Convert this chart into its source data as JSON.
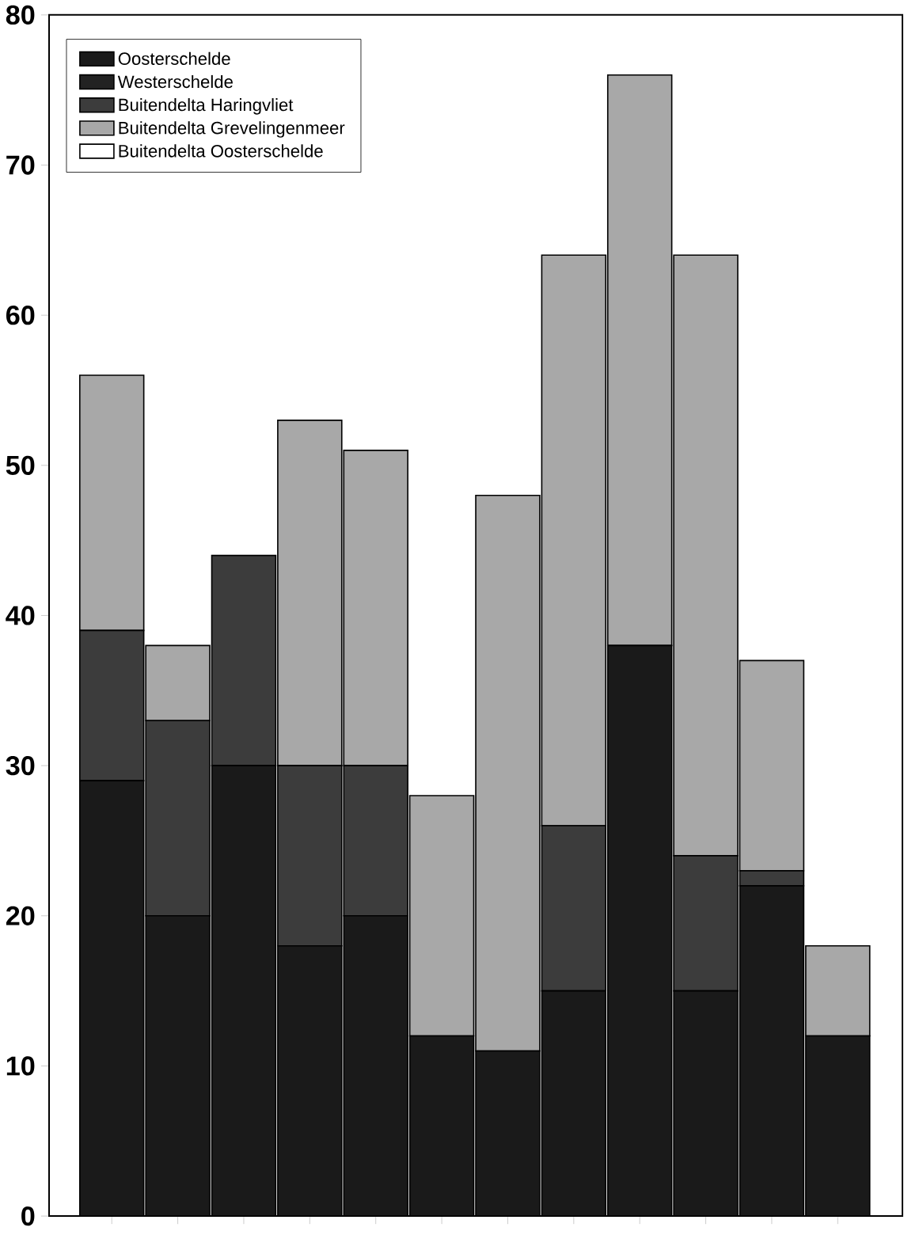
{
  "chart_data": {
    "type": "bar",
    "stacked": true,
    "categories": [
      null,
      null,
      null,
      null,
      null,
      null,
      null,
      null,
      null,
      null,
      null,
      null
    ],
    "series": [
      {
        "name": "Oosterschelde",
        "color": "#1a1a1a",
        "values": [
          29,
          20,
          30,
          18,
          20,
          12,
          11,
          15,
          38,
          15,
          22,
          12
        ]
      },
      {
        "name": "Westerschelde",
        "color": "#222222",
        "values": [
          0,
          0,
          0,
          0,
          0,
          0,
          0,
          0,
          0,
          0,
          0,
          0
        ]
      },
      {
        "name": "Buitendelta Haringvliet",
        "color": "#3c3c3c",
        "values": [
          10,
          13,
          14,
          12,
          10,
          0,
          0,
          11,
          0,
          9,
          1,
          0
        ]
      },
      {
        "name": "Buitendelta Grevelingenmeer",
        "color": "#a8a8a8",
        "values": [
          17,
          5,
          0,
          23,
          21,
          16,
          37,
          38,
          38,
          40,
          14,
          6
        ]
      },
      {
        "name": "Buitendelta Oosterschelde",
        "color": "#ffffff",
        "values": [
          0,
          0,
          0,
          0,
          0,
          0,
          0,
          0,
          0,
          0,
          0,
          0
        ]
      }
    ],
    "ylim": [
      0,
      80
    ],
    "yticks": [
      0,
      10,
      20,
      30,
      40,
      50,
      60,
      70,
      80
    ],
    "legend": "top left",
    "grid": false,
    "tick_labels": "y"
  }
}
